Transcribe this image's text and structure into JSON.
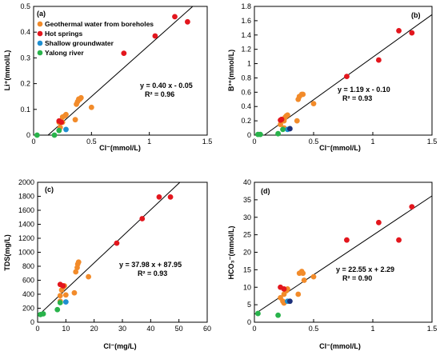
{
  "legend": [
    {
      "label": "Geothermal water from boreholes",
      "color": "#f28b2a"
    },
    {
      "label": "Hot springs",
      "color": "#e3161d"
    },
    {
      "label": "Shallow groundwater",
      "color": "#1e8fd1"
    },
    {
      "label": "Yalong river",
      "color": "#29b34b"
    }
  ],
  "chart_data": [
    {
      "type": "scatter",
      "panel": "(a)",
      "xlabel": "Cl⁻(mmol/L)",
      "ylabel": "Li⁺(mmol/L)",
      "xlim": [
        0,
        1.5
      ],
      "ylim": [
        0,
        0.5
      ],
      "xticks": [
        "0",
        "0.5",
        "1",
        "1.5"
      ],
      "yticks": [
        "0",
        "0.1",
        "0.2",
        "0.3",
        "0.4",
        "0.5"
      ],
      "fit": {
        "slope": 0.4,
        "intercept": -0.05,
        "equation": "y = 0.40 x - 0.05",
        "r2": "R² = 0.96"
      },
      "series": [
        {
          "name": "Geothermal water from boreholes",
          "color": "#f28b2a",
          "points": [
            [
              0.22,
              0.05
            ],
            [
              0.25,
              0.07
            ],
            [
              0.27,
              0.075
            ],
            [
              0.28,
              0.08
            ],
            [
              0.25,
              0.05
            ],
            [
              0.37,
              0.12
            ],
            [
              0.38,
              0.13
            ],
            [
              0.39,
              0.14
            ],
            [
              0.4,
              0.14
            ],
            [
              0.41,
              0.145
            ],
            [
              0.5,
              0.108
            ],
            [
              0.23,
              0.03
            ],
            [
              0.36,
              0.06
            ]
          ]
        },
        {
          "name": "Hot springs",
          "color": "#e3161d",
          "points": [
            [
              0.78,
              0.318
            ],
            [
              1.05,
              0.385
            ],
            [
              1.22,
              0.46
            ],
            [
              1.33,
              0.44
            ],
            [
              0.22,
              0.055
            ],
            [
              0.24,
              0.05
            ]
          ]
        },
        {
          "name": "Shallow groundwater",
          "color": "#1e8fd1",
          "points": [
            [
              0.28,
              0.022
            ]
          ]
        },
        {
          "name": "Yalong river",
          "color": "#29b34b",
          "points": [
            [
              0.03,
              0.0
            ],
            [
              0.18,
              0.0
            ],
            [
              0.22,
              0.018
            ]
          ]
        }
      ]
    },
    {
      "type": "scatter",
      "panel": "(b)",
      "xlabel": "Cl⁻(mmol/L)",
      "ylabel": "B³⁺(mmol/L)",
      "xlim": [
        0,
        1.5
      ],
      "ylim": [
        0,
        1.8
      ],
      "xticks": [
        "0",
        "0.5",
        "1",
        "1.5"
      ],
      "yticks": [
        "0",
        "0.2",
        "0.4",
        "0.6",
        "0.8",
        "1",
        "1.2",
        "1.4",
        "1.6",
        "1.8"
      ],
      "fit": {
        "slope": 1.19,
        "intercept": -0.1,
        "equation": "y = 1.19 x - 0.10",
        "r2": "R² = 0.93"
      },
      "series": [
        {
          "name": "Geothermal water from boreholes",
          "color": "#f28b2a",
          "points": [
            [
              0.22,
              0.15
            ],
            [
              0.25,
              0.2
            ],
            [
              0.26,
              0.25
            ],
            [
              0.27,
              0.27
            ],
            [
              0.28,
              0.28
            ],
            [
              0.25,
              0.1
            ],
            [
              0.37,
              0.5
            ],
            [
              0.38,
              0.54
            ],
            [
              0.4,
              0.57
            ],
            [
              0.41,
              0.57
            ],
            [
              0.5,
              0.44
            ],
            [
              0.36,
              0.2
            ]
          ]
        },
        {
          "name": "Hot springs",
          "color": "#e3161d",
          "points": [
            [
              0.78,
              0.82
            ],
            [
              1.05,
              1.05
            ],
            [
              1.22,
              1.46
            ],
            [
              1.33,
              1.43
            ],
            [
              0.22,
              0.21
            ],
            [
              0.23,
              0.22
            ]
          ]
        },
        {
          "name": "Shallow groundwater",
          "color": "#1e8fd1",
          "points": [
            [
              0.28,
              0.08
            ]
          ]
        },
        {
          "name": "",
          "color": "#1b2f7a",
          "points": [
            [
              0.3,
              0.09
            ]
          ]
        },
        {
          "name": "Yalong river",
          "color": "#29b34b",
          "points": [
            [
              0.03,
              0.01
            ],
            [
              0.05,
              0.01
            ],
            [
              0.2,
              0.02
            ],
            [
              0.24,
              0.08
            ]
          ]
        }
      ]
    },
    {
      "type": "scatter",
      "panel": "(c)",
      "xlabel": "Cl⁻(mg/L)",
      "ylabel": "TDS(mg/L)",
      "xlim": [
        0,
        60
      ],
      "ylim": [
        0,
        2000
      ],
      "xticks": [
        "0",
        "10",
        "20",
        "30",
        "40",
        "50",
        "60"
      ],
      "yticks": [
        "0",
        "200",
        "400",
        "600",
        "800",
        "1000",
        "1200",
        "1400",
        "1600",
        "1800",
        "2000"
      ],
      "fit": {
        "slope": 37.98,
        "intercept": 87.95,
        "equation": "y = 37.98 x + 87.95",
        "r2": "R² = 0.93"
      },
      "series": [
        {
          "name": "Geothermal water from boreholes",
          "color": "#f28b2a",
          "points": [
            [
              8,
              380
            ],
            [
              8.5,
              460
            ],
            [
              9,
              500
            ],
            [
              9.5,
              520
            ],
            [
              8,
              300
            ],
            [
              13,
              420
            ],
            [
              13.5,
              720
            ],
            [
              14,
              780
            ],
            [
              14.2,
              830
            ],
            [
              14.5,
              860
            ],
            [
              18,
              650
            ],
            [
              10,
              390
            ]
          ]
        },
        {
          "name": "Hot springs",
          "color": "#e3161d",
          "points": [
            [
              28,
              1130
            ],
            [
              37,
              1480
            ],
            [
              43,
              1790
            ],
            [
              47,
              1790
            ],
            [
              8,
              540
            ],
            [
              9,
              520
            ]
          ]
        },
        {
          "name": "Shallow groundwater",
          "color": "#1e8fd1",
          "points": [
            [
              10,
              290
            ]
          ]
        },
        {
          "name": "Yalong river",
          "color": "#29b34b",
          "points": [
            [
              1,
              110
            ],
            [
              2,
              120
            ],
            [
              7,
              180
            ],
            [
              8,
              280
            ]
          ]
        }
      ]
    },
    {
      "type": "scatter",
      "panel": "(d)",
      "xlabel": "Cl⁻(mmol/L)",
      "ylabel": "HCO₃⁻(mmol/L)",
      "xlim": [
        0,
        1.5
      ],
      "ylim": [
        0,
        40
      ],
      "xticks": [
        "0",
        "0.5",
        "1",
        "1.5"
      ],
      "yticks": [
        "0",
        "5",
        "10",
        "15",
        "20",
        "25",
        "30",
        "35",
        "40"
      ],
      "fit": {
        "slope": 22.55,
        "intercept": 2.29,
        "equation": "y = 22.55 x + 2.29",
        "r2": "R² = 0.90"
      },
      "series": [
        {
          "name": "Geothermal water from boreholes",
          "color": "#f28b2a",
          "points": [
            [
              0.22,
              7
            ],
            [
              0.25,
              8
            ],
            [
              0.27,
              9
            ],
            [
              0.28,
              9.5
            ],
            [
              0.25,
              5.5
            ],
            [
              0.37,
              8
            ],
            [
              0.38,
              14
            ],
            [
              0.4,
              14.5
            ],
            [
              0.41,
              14
            ],
            [
              0.42,
              12
            ],
            [
              0.5,
              13
            ],
            [
              0.24,
              6
            ]
          ]
        },
        {
          "name": "Hot springs",
          "color": "#e3161d",
          "points": [
            [
              0.78,
              23.5
            ],
            [
              1.05,
              28.5
            ],
            [
              1.22,
              23.5
            ],
            [
              1.33,
              33
            ],
            [
              0.22,
              10
            ],
            [
              0.25,
              9.5
            ]
          ]
        },
        {
          "name": "Shallow groundwater",
          "color": "#1e8fd1",
          "points": [
            [
              0.28,
              6
            ]
          ]
        },
        {
          "name": "",
          "color": "#1b2f7a",
          "points": [
            [
              0.3,
              6
            ]
          ]
        },
        {
          "name": "Yalong river",
          "color": "#29b34b",
          "points": [
            [
              0.03,
              2.5
            ],
            [
              0.2,
              2
            ]
          ]
        }
      ]
    }
  ]
}
